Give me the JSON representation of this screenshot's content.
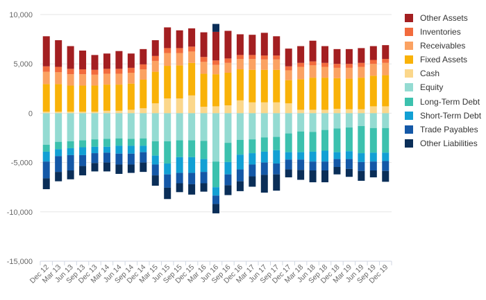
{
  "chart_data": {
    "type": "bar",
    "stacked": true,
    "categories": [
      "Dec 12",
      "Mar 13",
      "Jun 13",
      "Sep 13",
      "Dec 13",
      "Mar 14",
      "Jun 14",
      "Sep 14",
      "Dec 14",
      "Mar 15",
      "Jun 15",
      "Sep 15",
      "Dec 15",
      "Mar 16",
      "Jun 16",
      "Sep 16",
      "Dec 16",
      "Mar 17",
      "Jun 17",
      "Sep 17",
      "Dec 17",
      "Mar 18",
      "Jun 18",
      "Sep 18",
      "Dec 18",
      "Mar 19",
      "Jun 19",
      "Sep 19",
      "Dec 19"
    ],
    "x_tick_labels": [
      "Dec 12",
      "Mar 13",
      "Jun 13",
      "Sep 13",
      "Dec 13",
      "Mar 14",
      "Jun 14",
      "Sep 14",
      "Dec 14",
      "Mar 15",
      "Jun 15",
      "Sep 15",
      "Dec 15",
      "Mar 16",
      "Jun 16",
      "Sep 16",
      "Dec 16",
      "Mar 17",
      "Jun 17",
      "Sep 17",
      "Dec 17",
      "Mar 18",
      "Jun 18",
      "Sep 18",
      "Dec 18",
      "Mar 19",
      "Jun 19",
      "Sep 19",
      "Dec 19"
    ],
    "ylim": [
      -15000,
      10000
    ],
    "y_ticks": [
      10000,
      5000,
      0,
      -5000,
      -10000,
      -15000
    ],
    "y_tick_labels": [
      "10,000",
      "5,000",
      "0",
      "-5,000",
      "-10,000",
      "-15,000"
    ],
    "grid": true,
    "legend_position": "right",
    "positive_series": [
      {
        "name": "Cash",
        "color": "#fbd78b",
        "values": [
          150,
          150,
          150,
          150,
          150,
          250,
          250,
          350,
          500,
          1000,
          1500,
          1500,
          1800,
          650,
          700,
          800,
          1300,
          1100,
          1100,
          1100,
          1000,
          350,
          350,
          350,
          450,
          400,
          400,
          700,
          700
        ]
      },
      {
        "name": "Fixed Assets",
        "color": "#f9b208",
        "values": [
          2800,
          2800,
          2650,
          2650,
          2650,
          2650,
          2650,
          2650,
          2900,
          3200,
          3300,
          3350,
          3300,
          3350,
          3250,
          3300,
          3150,
          3300,
          3300,
          3300,
          2350,
          3100,
          3250,
          3250,
          3100,
          3100,
          3200,
          3100,
          3150
        ]
      },
      {
        "name": "Receivables",
        "color": "#fba262",
        "values": [
          1250,
          1200,
          1150,
          1150,
          1100,
          1100,
          1100,
          1100,
          1050,
          1100,
          1300,
          1250,
          1150,
          1200,
          950,
          1000,
          1050,
          1100,
          1050,
          1050,
          1000,
          1250,
          1250,
          1100,
          1050,
          1100,
          1100,
          1200,
          1250
        ]
      },
      {
        "name": "Inventories",
        "color": "#f26b3d",
        "values": [
          550,
          550,
          550,
          500,
          500,
          500,
          500,
          500,
          500,
          500,
          500,
          500,
          500,
          500,
          450,
          450,
          400,
          400,
          400,
          400,
          400,
          400,
          400,
          400,
          400,
          400,
          400,
          400,
          400
        ]
      },
      {
        "name": "Other Assets",
        "color": "#a31f21",
        "values": [
          3050,
          2700,
          2300,
          1900,
          1500,
          1550,
          1800,
          1450,
          1550,
          1600,
          2100,
          1800,
          1850,
          2500,
          2900,
          2800,
          2100,
          2050,
          2300,
          1950,
          1800,
          1700,
          2100,
          1700,
          1500,
          1500,
          1500,
          1400,
          1400
        ]
      }
    ],
    "negative_series": [
      {
        "name": "Equity",
        "color": "#94dbd2",
        "values": [
          3200,
          2900,
          2850,
          2750,
          2650,
          2600,
          2550,
          2600,
          2550,
          2850,
          2850,
          2750,
          2750,
          2800,
          4900,
          3000,
          2700,
          2650,
          2450,
          2400,
          2050,
          1850,
          1900,
          1700,
          1550,
          1450,
          1300,
          1500,
          1500
        ]
      },
      {
        "name": "Long-Term Debt",
        "color": "#3cc1ae",
        "values": [
          700,
          750,
          700,
          700,
          750,
          800,
          750,
          700,
          750,
          1450,
          2250,
          1700,
          1700,
          1850,
          2600,
          1950,
          1500,
          1400,
          1450,
          1350,
          1900,
          2100,
          2000,
          2100,
          2400,
          2400,
          2750,
          2500,
          2500
        ]
      },
      {
        "name": "Short-Term Debt",
        "color": "#12a0d4",
        "values": [
          1000,
          700,
          700,
          800,
          650,
          600,
          800,
          800,
          650,
          900,
          1100,
          1600,
          1600,
          1300,
          850,
          1250,
          1500,
          1150,
          1100,
          1350,
          750,
          750,
          1000,
          1100,
          700,
          800,
          900,
          900,
          850
        ]
      },
      {
        "name": "Trade Payables",
        "color": "#1458a7",
        "values": [
          1700,
          1600,
          1550,
          1100,
          1000,
          1000,
          1100,
          1100,
          1050,
          1100,
          1350,
          1050,
          1150,
          1150,
          850,
          1100,
          1200,
          1200,
          1250,
          1100,
          1000,
          1050,
          900,
          900,
          800,
          1000,
          900,
          900,
          1000
        ]
      },
      {
        "name": "Other Liabilities",
        "color": "#0a2e58",
        "values": [
          1100,
          950,
          900,
          950,
          850,
          900,
          950,
          850,
          950,
          1050,
          1150,
          900,
          1050,
          850,
          950,
          1000,
          1000,
          1050,
          1800,
          1650,
          800,
          1000,
          1200,
          1200,
          750,
          800,
          1000,
          700,
          1100
        ]
      }
    ],
    "extra_series": [
      {
        "name": "Other Liabilities",
        "color": "#0a2e58",
        "category": "Jun 16",
        "value": 800
      }
    ]
  },
  "legend": {
    "items": [
      {
        "label": "Other Assets",
        "color": "#a31f21"
      },
      {
        "label": "Inventories",
        "color": "#f26b3d"
      },
      {
        "label": "Receivables",
        "color": "#fba262"
      },
      {
        "label": "Fixed Assets",
        "color": "#f9b208"
      },
      {
        "label": "Cash",
        "color": "#fbd78b"
      },
      {
        "label": "Equity",
        "color": "#94dbd2"
      },
      {
        "label": "Long-Term Debt",
        "color": "#3cc1ae"
      },
      {
        "label": "Short-Term Debt",
        "color": "#12a0d4"
      },
      {
        "label": "Trade Payables",
        "color": "#1458a7"
      },
      {
        "label": "Other Liabilities",
        "color": "#0a2e58"
      }
    ]
  }
}
